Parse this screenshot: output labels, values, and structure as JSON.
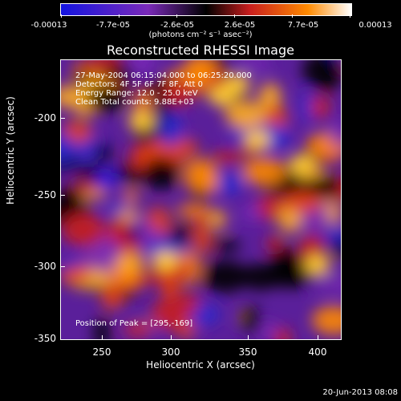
{
  "colorbar": {
    "ticks": [
      "-0.00013",
      "-7.7e-05",
      "-2.6e-05",
      "2.6e-05",
      "7.7e-05",
      "0.00013"
    ],
    "units": "(photons cm⁻² s⁻¹ asec⁻²)"
  },
  "title": "Reconstructed RHESSI Image",
  "annotations": {
    "line1": "27-May-2004 06:15:04.000 to 06:25:20.000",
    "line2": "Detectors: 4F 5F 6F 7F 8F, Att 0",
    "line3": "Energy Range: 12.0 - 25.0 keV",
    "line4": "Clean    Total counts: 9.88E+03",
    "peak": "Position of Peak = [295,-169]"
  },
  "axes": {
    "xlabel": "Heliocentric X (arcsec)",
    "ylabel": "Heliocentric Y (arcsec)",
    "xticks": [
      "250",
      "300",
      "350",
      "400"
    ],
    "yticks": [
      "-200",
      "-250",
      "-300",
      "-350"
    ]
  },
  "footer": "20-Jun-2013 08:08",
  "colors": {
    "map_low": "#1414e0",
    "map_mid_low": "#7a2ab8",
    "map_zero": "#000000",
    "map_mid_high": "#c81e1e",
    "map_high": "#ff8a00",
    "map_peak": "#ffffff"
  }
}
